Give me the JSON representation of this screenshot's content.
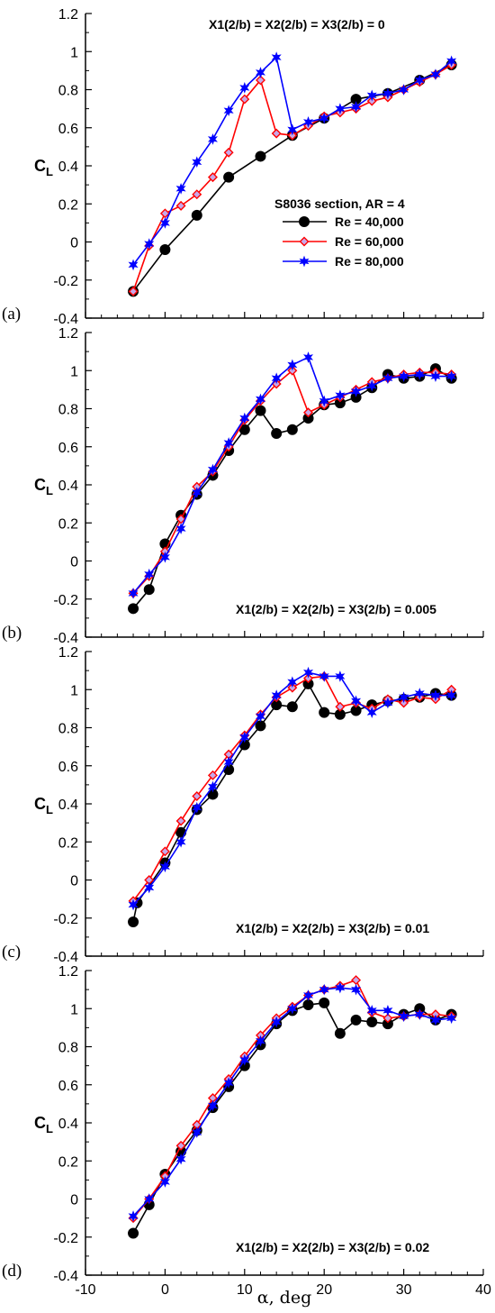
{
  "colors": {
    "Re = 40,000": "#000000",
    "Re = 60,000": "#ff0000",
    "Re = 80,000": "#0000ff",
    "marker_fill_60": "#c8a8e8"
  },
  "legend": {
    "title": "S8036 section, AR = 4"
  },
  "x_axis_label": "α, deg",
  "chart_data": [
    {
      "type": "line",
      "panel_label": "(a)",
      "annotation": "X1(2/b) = X2(2/b) = X3(2/b) = 0",
      "ylabel": "C",
      "ylabel_sub": "L",
      "xlim": [
        -10,
        40
      ],
      "ylim": [
        -0.4,
        1.2
      ],
      "xticks": [
        "-10",
        "0",
        "10",
        "20",
        "30",
        "40"
      ],
      "yticks": [
        "-0.4",
        "-0.2",
        "0",
        "0.2",
        "0.4",
        "0.6",
        "0.8",
        "1",
        "1.2"
      ],
      "series": [
        {
          "name": "Re = 40,000",
          "marker": "circle",
          "x": [
            -4,
            0,
            4,
            8,
            12,
            16,
            20,
            24,
            28,
            32,
            36
          ],
          "y": [
            -0.26,
            -0.04,
            0.14,
            0.34,
            0.45,
            0.56,
            0.65,
            0.75,
            0.78,
            0.85,
            0.93
          ]
        },
        {
          "name": "Re = 60,000",
          "marker": "diamond",
          "x": [
            -4,
            -2,
            0,
            2,
            4,
            6,
            8,
            10,
            12,
            14,
            16,
            18,
            20,
            22,
            24,
            26,
            28,
            30,
            32,
            34,
            36
          ],
          "y": [
            -0.26,
            -0.02,
            0.15,
            0.19,
            0.25,
            0.34,
            0.47,
            0.75,
            0.85,
            0.57,
            0.56,
            0.61,
            0.66,
            0.68,
            0.7,
            0.74,
            0.76,
            0.8,
            0.84,
            0.88,
            0.93
          ]
        },
        {
          "name": "Re = 80,000",
          "marker": "star",
          "x": [
            -4,
            -2,
            0,
            2,
            4,
            6,
            8,
            10,
            12,
            14,
            16,
            18,
            20,
            22,
            24,
            26,
            28,
            30,
            32,
            34,
            36
          ],
          "y": [
            -0.12,
            -0.01,
            0.1,
            0.28,
            0.42,
            0.54,
            0.69,
            0.81,
            0.89,
            0.97,
            0.59,
            0.63,
            0.65,
            0.7,
            0.71,
            0.77,
            0.78,
            0.8,
            0.85,
            0.88,
            0.95
          ]
        }
      ]
    },
    {
      "type": "line",
      "panel_label": "(b)",
      "annotation": "X1(2/b) = X2(2/b) = X3(2/b) = 0.005",
      "ylabel": "C",
      "ylabel_sub": "L",
      "xlim": [
        -10,
        40
      ],
      "ylim": [
        -0.4,
        1.2
      ],
      "xticks": [
        "-10",
        "0",
        "10",
        "20",
        "30",
        "40"
      ],
      "yticks": [
        "-0.4",
        "-0.2",
        "0",
        "0.2",
        "0.4",
        "0.6",
        "0.8",
        "1",
        "1.2"
      ],
      "series": [
        {
          "name": "Re = 40,000",
          "marker": "circle",
          "x": [
            -4,
            -2,
            0,
            2,
            4,
            6,
            8,
            10,
            12,
            14,
            16,
            18,
            20,
            22,
            24,
            26,
            28,
            30,
            32,
            34,
            36
          ],
          "y": [
            -0.25,
            -0.15,
            0.09,
            0.24,
            0.35,
            0.45,
            0.58,
            0.69,
            0.79,
            0.67,
            0.69,
            0.75,
            0.82,
            0.83,
            0.86,
            0.91,
            0.98,
            0.96,
            0.97,
            1.01,
            0.96
          ]
        },
        {
          "name": "Re = 60,000",
          "marker": "diamond",
          "x": [
            -4,
            -2,
            0,
            2,
            4,
            6,
            8,
            10,
            12,
            14,
            16,
            18,
            20,
            22,
            24,
            26,
            28,
            30,
            32,
            34,
            36
          ],
          "y": [
            -0.17,
            -0.08,
            0.05,
            0.22,
            0.39,
            0.47,
            0.6,
            0.74,
            0.84,
            0.93,
            1.0,
            0.78,
            0.82,
            0.86,
            0.9,
            0.94,
            0.96,
            0.98,
            0.99,
            0.99,
            0.98
          ]
        },
        {
          "name": "Re = 80,000",
          "marker": "star",
          "x": [
            -4,
            -2,
            0,
            2,
            4,
            6,
            8,
            10,
            12,
            14,
            16,
            18,
            20,
            22,
            24,
            26,
            28,
            30,
            32,
            34,
            36
          ],
          "y": [
            -0.17,
            -0.07,
            0.02,
            0.17,
            0.36,
            0.48,
            0.62,
            0.75,
            0.85,
            0.96,
            1.03,
            1.07,
            0.84,
            0.87,
            0.89,
            0.92,
            0.96,
            0.97,
            0.98,
            0.97,
            0.97
          ]
        }
      ]
    },
    {
      "type": "line",
      "panel_label": "(c)",
      "annotation": "X1(2/b) = X2(2/b) = X3(2/b) = 0.01",
      "ylabel": "C",
      "ylabel_sub": "L",
      "xlim": [
        -10,
        40
      ],
      "ylim": [
        -0.4,
        1.2
      ],
      "xticks": [
        "-10",
        "0",
        "10",
        "20",
        "30",
        "40"
      ],
      "yticks": [
        "-0.4",
        "-0.2",
        "0",
        "0.2",
        "0.4",
        "0.6",
        "0.8",
        "1",
        "1.2"
      ],
      "series": [
        {
          "name": "Re = 40,000",
          "marker": "circle",
          "x": [
            -4,
            -3.5,
            0,
            2,
            4,
            6,
            8,
            10,
            12,
            14,
            16,
            18,
            20,
            22,
            24,
            26,
            28,
            30,
            32,
            34,
            36
          ],
          "y": [
            -0.22,
            -0.12,
            0.09,
            0.25,
            0.37,
            0.45,
            0.58,
            0.71,
            0.81,
            0.92,
            0.91,
            1.03,
            0.88,
            0.87,
            0.89,
            0.92,
            0.94,
            0.95,
            0.96,
            0.98,
            0.97
          ]
        },
        {
          "name": "Re = 60,000",
          "marker": "diamond",
          "x": [
            -4,
            -2,
            0,
            2,
            4,
            6,
            8,
            10,
            12,
            14,
            16,
            18,
            20,
            22,
            24,
            26,
            28,
            30,
            32,
            34,
            36
          ],
          "y": [
            -0.11,
            0.0,
            0.15,
            0.31,
            0.44,
            0.55,
            0.66,
            0.76,
            0.87,
            0.96,
            1.01,
            1.06,
            1.07,
            0.91,
            0.93,
            0.9,
            0.95,
            0.93,
            0.96,
            0.95,
            1.0
          ]
        },
        {
          "name": "Re = 80,000",
          "marker": "star",
          "x": [
            -4,
            -2,
            0,
            2,
            4,
            6,
            8,
            10,
            12,
            14,
            16,
            18,
            20,
            22,
            24,
            26,
            28,
            30,
            32,
            34,
            36
          ],
          "y": [
            -0.13,
            -0.04,
            0.07,
            0.2,
            0.38,
            0.49,
            0.62,
            0.75,
            0.86,
            0.97,
            1.04,
            1.09,
            1.07,
            1.07,
            0.94,
            0.88,
            0.93,
            0.96,
            0.98,
            0.97,
            0.97
          ]
        }
      ]
    },
    {
      "type": "line",
      "panel_label": "(d)",
      "annotation": "X1(2/b) = X2(2/b) = X3(2/b) = 0.02",
      "ylabel": "C",
      "ylabel_sub": "L",
      "xlim": [
        -10,
        40
      ],
      "ylim": [
        -0.4,
        1.2
      ],
      "xticks": [
        "-10",
        "0",
        "10",
        "20",
        "30",
        "40"
      ],
      "yticks": [
        "-0.4",
        "-0.2",
        "0",
        "0.2",
        "0.4",
        "0.6",
        "0.8",
        "1",
        "1.2"
      ],
      "series": [
        {
          "name": "Re = 40,000",
          "marker": "circle",
          "x": [
            -4,
            -2,
            0,
            2,
            4,
            6,
            8,
            10,
            12,
            14,
            16,
            18,
            20,
            22,
            24,
            26,
            28,
            30,
            32,
            34,
            36
          ],
          "y": [
            -0.18,
            -0.03,
            0.13,
            0.25,
            0.36,
            0.48,
            0.59,
            0.7,
            0.81,
            0.92,
            0.99,
            1.02,
            1.03,
            0.87,
            0.94,
            0.93,
            0.92,
            0.97,
            1.0,
            0.94,
            0.97
          ]
        },
        {
          "name": "Re = 60,000",
          "marker": "diamond",
          "x": [
            -4,
            -2,
            0,
            2,
            4,
            6,
            8,
            10,
            12,
            14,
            16,
            18,
            20,
            22,
            24,
            26,
            28,
            30,
            32,
            34,
            36
          ],
          "y": [
            -0.1,
            0.0,
            0.12,
            0.28,
            0.39,
            0.53,
            0.63,
            0.75,
            0.86,
            0.95,
            1.01,
            1.07,
            1.1,
            1.12,
            1.15,
            0.98,
            0.95,
            0.96,
            0.97,
            0.97,
            0.96
          ]
        },
        {
          "name": "Re = 80,000",
          "marker": "star",
          "x": [
            -4,
            -2,
            0,
            2,
            4,
            6,
            8,
            10,
            12,
            14,
            16,
            18,
            20,
            22,
            24,
            26,
            28,
            30,
            32,
            34,
            36
          ],
          "y": [
            -0.09,
            0.0,
            0.09,
            0.21,
            0.35,
            0.49,
            0.61,
            0.73,
            0.83,
            0.93,
            1.0,
            1.07,
            1.1,
            1.11,
            1.1,
            0.99,
            0.99,
            0.96,
            0.97,
            0.94,
            0.95
          ]
        }
      ]
    }
  ]
}
